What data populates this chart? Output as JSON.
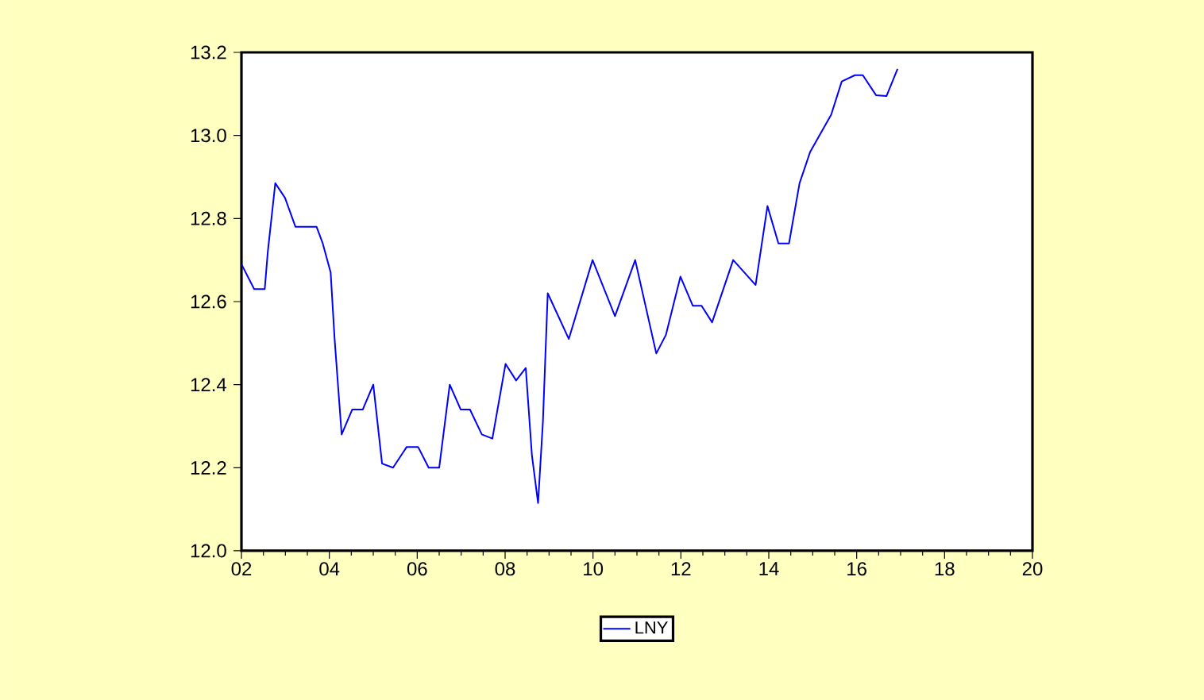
{
  "chart_data": {
    "type": "line",
    "x": [
      2002.0,
      2002.29,
      2002.53,
      2002.6,
      2002.77,
      2002.99,
      2003.23,
      2003.49,
      2003.71,
      2003.85,
      2004.03,
      2004.12,
      2004.28,
      2004.52,
      2004.76,
      2005.0,
      2005.2,
      2005.45,
      2005.76,
      2006.02,
      2006.26,
      2006.5,
      2006.74,
      2006.99,
      2007.2,
      2007.47,
      2007.71,
      2008.01,
      2008.25,
      2008.47,
      2008.61,
      2008.75,
      2008.86,
      2008.97,
      2009.45,
      2009.99,
      2010.5,
      2010.96,
      2011.44,
      2011.66,
      2011.99,
      2012.27,
      2012.47,
      2012.71,
      2013.19,
      2013.7,
      2013.97,
      2014.22,
      2014.46,
      2014.7,
      2014.94,
      2015.18,
      2015.42,
      2015.66,
      2015.96,
      2016.14,
      2016.44,
      2016.68,
      2016.93
    ],
    "series": [
      {
        "name": "LNY",
        "color": "#0000ff",
        "values": [
          12.69,
          12.63,
          12.63,
          12.72,
          12.885,
          12.85,
          12.78,
          12.78,
          12.78,
          12.74,
          12.67,
          12.51,
          12.28,
          12.34,
          12.34,
          12.4,
          12.21,
          12.2,
          12.25,
          12.25,
          12.2,
          12.2,
          12.4,
          12.34,
          12.34,
          12.28,
          12.27,
          12.45,
          12.41,
          12.44,
          12.23,
          12.115,
          12.31,
          12.62,
          12.51,
          12.7,
          12.565,
          12.7,
          12.475,
          12.52,
          12.66,
          12.59,
          12.59,
          12.55,
          12.7,
          12.64,
          12.83,
          12.74,
          12.74,
          12.885,
          12.96,
          13.005,
          13.05,
          13.13,
          13.145,
          13.145,
          13.097,
          13.095,
          13.16
        ]
      }
    ],
    "xlim": [
      2002,
      2020
    ],
    "xticks": [
      {
        "value": 2002,
        "label": "02"
      },
      {
        "value": 2004,
        "label": "04"
      },
      {
        "value": 2006,
        "label": "06"
      },
      {
        "value": 2008,
        "label": "08"
      },
      {
        "value": 2010,
        "label": "10"
      },
      {
        "value": 2012,
        "label": "12"
      },
      {
        "value": 2014,
        "label": "14"
      },
      {
        "value": 2016,
        "label": "16"
      },
      {
        "value": 2018,
        "label": "18"
      },
      {
        "value": 2020,
        "label": "20"
      }
    ],
    "ylim": [
      12.0,
      13.2
    ],
    "yticks": [
      {
        "value": 12.0,
        "label": "12.0"
      },
      {
        "value": 12.2,
        "label": "12.2"
      },
      {
        "value": 12.4,
        "label": "12.4"
      },
      {
        "value": 12.6,
        "label": "12.6"
      },
      {
        "value": 12.8,
        "label": "12.8"
      },
      {
        "value": 13.0,
        "label": "13.0"
      },
      {
        "value": 13.2,
        "label": "13.2"
      }
    ],
    "grid": false,
    "legend": "bottom",
    "marker": "none",
    "line_style": "solid"
  }
}
